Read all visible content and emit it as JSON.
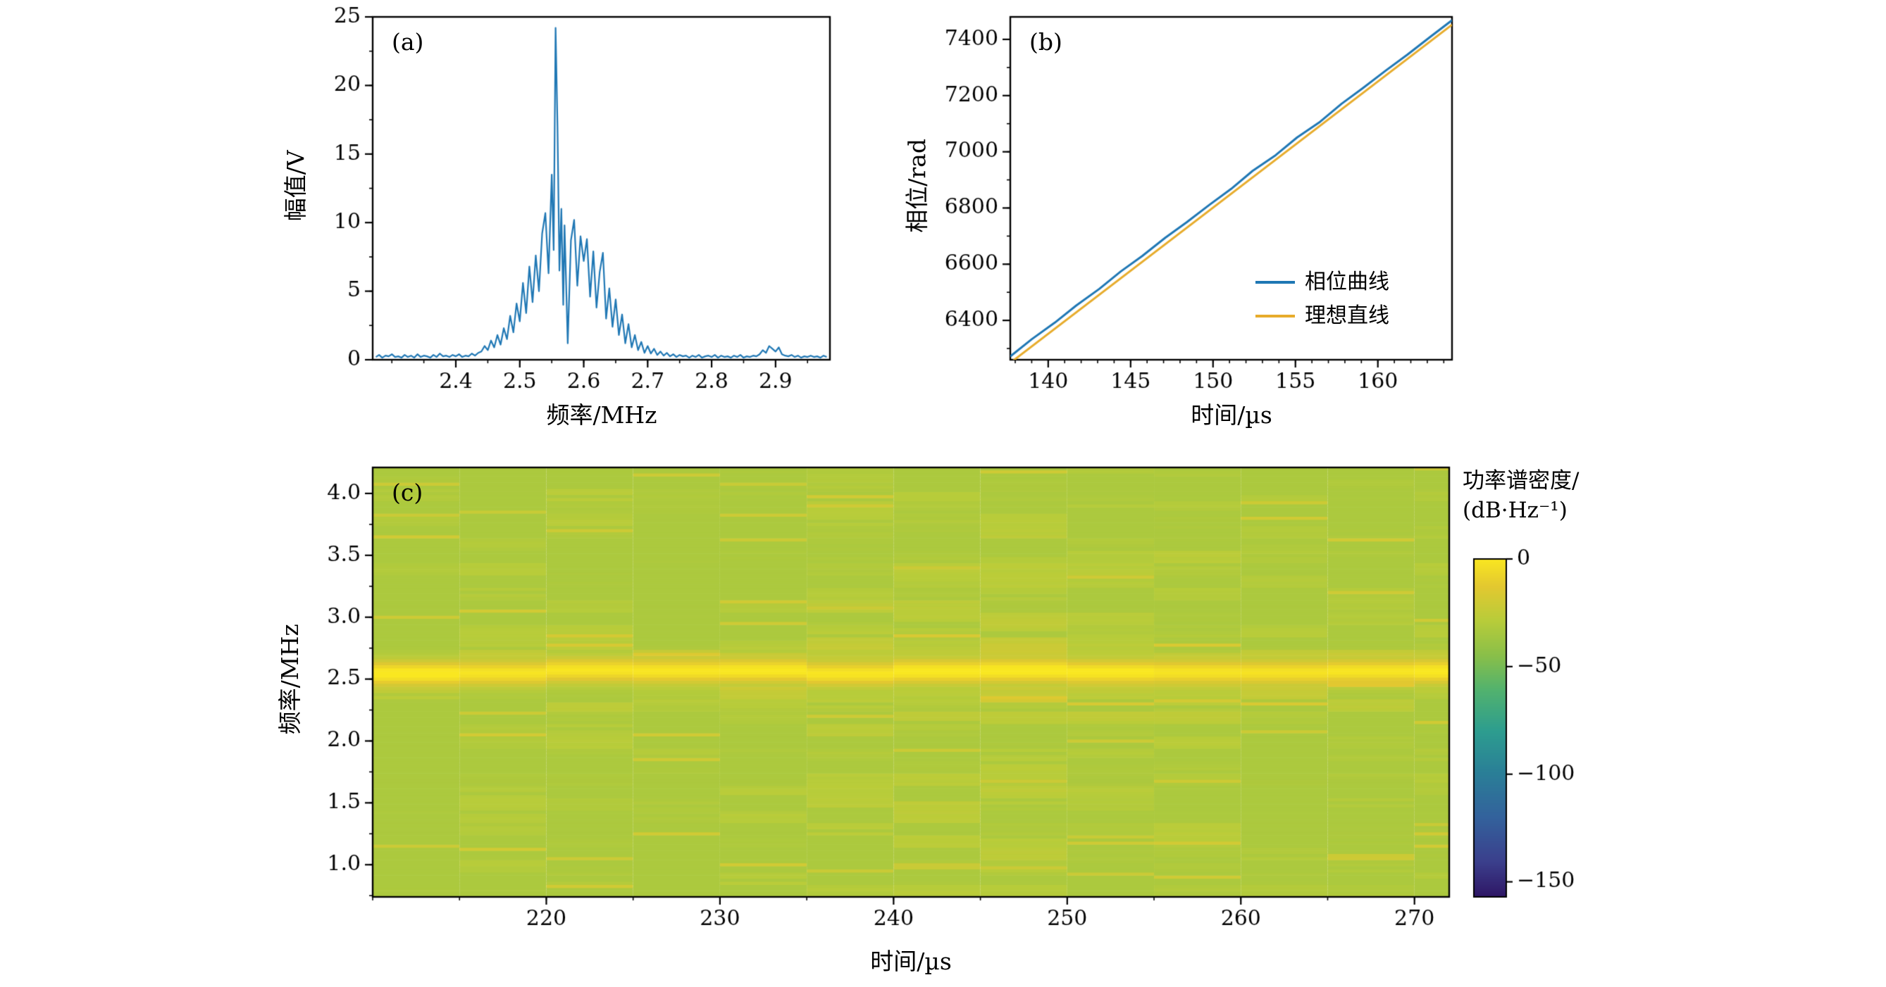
{
  "figure": {
    "background": "#ffffff",
    "panels": {
      "a": "(a)",
      "b": "(b)",
      "c": "(c)"
    }
  },
  "chart_data": [
    {
      "id": "a",
      "type": "line",
      "xlabel": "频率/MHz",
      "ylabel": "幅值/V",
      "xlim": [
        2.27,
        2.985
      ],
      "ylim": [
        0,
        25
      ],
      "xticks": [
        2.4,
        2.5,
        2.6,
        2.7,
        2.8,
        2.9
      ],
      "xtick_labels": [
        "2.4",
        "2.5",
        "2.6",
        "2.7",
        "2.8",
        "2.9"
      ],
      "yticks": [
        0,
        5,
        10,
        15,
        20,
        25
      ],
      "ytick_labels": [
        "0",
        "5",
        "10",
        "15",
        "20",
        "25"
      ],
      "x_minor_step": 0.05,
      "y_minor_step": 2.5,
      "line_color": "#1f77b4",
      "points": [
        [
          2.275,
          0.2
        ],
        [
          2.28,
          0.35
        ],
        [
          2.285,
          0.15
        ],
        [
          2.29,
          0.3
        ],
        [
          2.295,
          0.25
        ],
        [
          2.3,
          0.4
        ],
        [
          2.305,
          0.2
        ],
        [
          2.31,
          0.25
        ],
        [
          2.315,
          0.15
        ],
        [
          2.32,
          0.35
        ],
        [
          2.325,
          0.2
        ],
        [
          2.33,
          0.3
        ],
        [
          2.335,
          0.15
        ],
        [
          2.34,
          0.4
        ],
        [
          2.345,
          0.2
        ],
        [
          2.35,
          0.3
        ],
        [
          2.355,
          0.25
        ],
        [
          2.36,
          0.15
        ],
        [
          2.365,
          0.35
        ],
        [
          2.37,
          0.2
        ],
        [
          2.375,
          0.45
        ],
        [
          2.38,
          0.25
        ],
        [
          2.385,
          0.3
        ],
        [
          2.39,
          0.2
        ],
        [
          2.395,
          0.35
        ],
        [
          2.4,
          0.25
        ],
        [
          2.405,
          0.4
        ],
        [
          2.41,
          0.2
        ],
        [
          2.415,
          0.3
        ],
        [
          2.42,
          0.25
        ],
        [
          2.425,
          0.45
        ],
        [
          2.43,
          0.3
        ],
        [
          2.435,
          0.5
        ],
        [
          2.44,
          0.6
        ],
        [
          2.445,
          1.0
        ],
        [
          2.45,
          0.7
        ],
        [
          2.455,
          1.4
        ],
        [
          2.46,
          0.9
        ],
        [
          2.465,
          1.8
        ],
        [
          2.47,
          1.1
        ],
        [
          2.475,
          2.3
        ],
        [
          2.48,
          1.5
        ],
        [
          2.485,
          3.2
        ],
        [
          2.49,
          2.0
        ],
        [
          2.495,
          4.1
        ],
        [
          2.5,
          2.8
        ],
        [
          2.505,
          5.6
        ],
        [
          2.51,
          3.4
        ],
        [
          2.515,
          6.8
        ],
        [
          2.52,
          4.2
        ],
        [
          2.525,
          7.6
        ],
        [
          2.53,
          5.0
        ],
        [
          2.535,
          9.2
        ],
        [
          2.54,
          10.7
        ],
        [
          2.545,
          6.3
        ],
        [
          2.55,
          13.5
        ],
        [
          2.553,
          8.0
        ],
        [
          2.556,
          24.2
        ],
        [
          2.559,
          17.0
        ],
        [
          2.562,
          6.5
        ],
        [
          2.565,
          11.0
        ],
        [
          2.568,
          4.0
        ],
        [
          2.57,
          9.8
        ],
        [
          2.575,
          1.2
        ],
        [
          2.58,
          8.7
        ],
        [
          2.585,
          10.2
        ],
        [
          2.59,
          5.4
        ],
        [
          2.595,
          9.0
        ],
        [
          2.6,
          7.2
        ],
        [
          2.605,
          8.8
        ],
        [
          2.61,
          4.6
        ],
        [
          2.615,
          7.9
        ],
        [
          2.62,
          3.8
        ],
        [
          2.625,
          6.4
        ],
        [
          2.63,
          7.8
        ],
        [
          2.635,
          3.0
        ],
        [
          2.64,
          5.2
        ],
        [
          2.645,
          2.4
        ],
        [
          2.65,
          4.4
        ],
        [
          2.655,
          1.8
        ],
        [
          2.66,
          3.3
        ],
        [
          2.665,
          1.2
        ],
        [
          2.67,
          2.6
        ],
        [
          2.675,
          0.9
        ],
        [
          2.68,
          1.8
        ],
        [
          2.685,
          0.7
        ],
        [
          2.69,
          1.3
        ],
        [
          2.695,
          0.5
        ],
        [
          2.7,
          1.0
        ],
        [
          2.705,
          0.45
        ],
        [
          2.71,
          0.8
        ],
        [
          2.715,
          0.35
        ],
        [
          2.72,
          0.6
        ],
        [
          2.725,
          0.3
        ],
        [
          2.73,
          0.5
        ],
        [
          2.735,
          0.25
        ],
        [
          2.74,
          0.4
        ],
        [
          2.745,
          0.2
        ],
        [
          2.75,
          0.35
        ],
        [
          2.755,
          0.25
        ],
        [
          2.76,
          0.3
        ],
        [
          2.765,
          0.15
        ],
        [
          2.77,
          0.3
        ],
        [
          2.775,
          0.2
        ],
        [
          2.78,
          0.35
        ],
        [
          2.785,
          0.15
        ],
        [
          2.79,
          0.25
        ],
        [
          2.795,
          0.3
        ],
        [
          2.8,
          0.2
        ],
        [
          2.805,
          0.35
        ],
        [
          2.81,
          0.15
        ],
        [
          2.815,
          0.3
        ],
        [
          2.82,
          0.2
        ],
        [
          2.825,
          0.25
        ],
        [
          2.83,
          0.15
        ],
        [
          2.835,
          0.3
        ],
        [
          2.84,
          0.2
        ],
        [
          2.845,
          0.35
        ],
        [
          2.85,
          0.15
        ],
        [
          2.855,
          0.25
        ],
        [
          2.86,
          0.2
        ],
        [
          2.865,
          0.3
        ],
        [
          2.87,
          0.25
        ],
        [
          2.875,
          0.4
        ],
        [
          2.88,
          0.7
        ],
        [
          2.885,
          0.5
        ],
        [
          2.89,
          1.0
        ],
        [
          2.895,
          0.8
        ],
        [
          2.9,
          0.6
        ],
        [
          2.905,
          0.9
        ],
        [
          2.91,
          0.4
        ],
        [
          2.915,
          0.3
        ],
        [
          2.92,
          0.25
        ],
        [
          2.925,
          0.35
        ],
        [
          2.93,
          0.2
        ],
        [
          2.935,
          0.3
        ],
        [
          2.94,
          0.15
        ],
        [
          2.945,
          0.25
        ],
        [
          2.95,
          0.2
        ],
        [
          2.955,
          0.3
        ],
        [
          2.96,
          0.2
        ],
        [
          2.965,
          0.25
        ],
        [
          2.97,
          0.15
        ],
        [
          2.975,
          0.3
        ],
        [
          2.98,
          0.2
        ]
      ]
    },
    {
      "id": "b",
      "type": "line",
      "xlabel": "时间/µs",
      "ylabel": "相位/rad",
      "xlim": [
        137.7,
        164.5
      ],
      "ylim": [
        6260,
        7480
      ],
      "xticks": [
        140,
        145,
        150,
        155,
        160
      ],
      "xtick_labels": [
        "140",
        "145",
        "150",
        "155",
        "160"
      ],
      "yticks": [
        6400,
        6600,
        6800,
        7000,
        7200,
        7400
      ],
      "ytick_labels": [
        "6400",
        "6600",
        "6800",
        "7000",
        "7200",
        "7400"
      ],
      "x_minor_step": 1,
      "y_minor_step": 100,
      "legend_position": "lower right",
      "series": [
        {
          "name": "相位曲线",
          "color": "#1f77b4",
          "points": [
            [
              137.7,
              6272
            ],
            [
              139.0,
              6333
            ],
            [
              140.4,
              6392
            ],
            [
              141.7,
              6453
            ],
            [
              143.1,
              6512
            ],
            [
              144.4,
              6574
            ],
            [
              145.7,
              6629
            ],
            [
              147.1,
              6694
            ],
            [
              148.4,
              6749
            ],
            [
              149.8,
              6812
            ],
            [
              151.1,
              6868
            ],
            [
              152.4,
              6932
            ],
            [
              153.8,
              6988
            ],
            [
              155.1,
              7051
            ],
            [
              156.5,
              7107
            ],
            [
              157.8,
              7171
            ],
            [
              159.1,
              7227
            ],
            [
              160.5,
              7290
            ],
            [
              161.8,
              7346
            ],
            [
              163.2,
              7410
            ],
            [
              164.5,
              7468
            ]
          ]
        },
        {
          "name": "理想直线",
          "color": "#e7ac2c",
          "points": [
            [
              137.7,
              6249
            ],
            [
              164.5,
              7452
            ]
          ]
        }
      ]
    },
    {
      "id": "c",
      "type": "heatmap",
      "xlabel": "时间/µs",
      "ylabel": "频率/MHz",
      "xlim": [
        210,
        272
      ],
      "ylim": [
        0.74,
        4.21
      ],
      "xticks": [
        220,
        230,
        240,
        250,
        260,
        270
      ],
      "xtick_labels": [
        "220",
        "230",
        "240",
        "250",
        "260",
        "270"
      ],
      "yticks": [
        1.0,
        1.5,
        2.0,
        2.5,
        3.0,
        3.5,
        4.0
      ],
      "ytick_labels": [
        "1.0",
        "1.5",
        "2.0",
        "2.5",
        "3.0",
        "3.5",
        "4.0"
      ],
      "x_minor_step": 5,
      "y_minor_step": 0.25,
      "colorbar": {
        "label_line1": "功率谱密度/",
        "label_line2": "(dB·Hz⁻¹)",
        "ticks": [
          0,
          -50,
          -100,
          -150
        ],
        "tick_labels": [
          "0",
          "−50",
          "−100",
          "−150"
        ],
        "range": [
          0,
          -157
        ]
      },
      "model": {
        "seed": 7,
        "background_db": -33,
        "column_edges": [
          210,
          215,
          220,
          225,
          230,
          235,
          240,
          245,
          250,
          255,
          260,
          265,
          270,
          272
        ],
        "row_step_mhz": 0.025,
        "patch_height_mhz": 0.1,
        "patch_jitter_db": 4.5,
        "column_jitter_db": 2.5,
        "cell_jitter_db": 1.2,
        "streaks_per_column": 14,
        "streak_depth_db": [
          14,
          42
        ],
        "warm_rows_per_column": 6,
        "warm_db": -21,
        "global_streaks": [
          {
            "f": 0.87,
            "db": -52
          }
        ],
        "band": {
          "center_mhz": 2.56,
          "sigma_mhz": 0.07,
          "peak_db": 0,
          "halo_db": 9,
          "halo_sigma_mhz": 0.18
        }
      },
      "colormap_stops": [
        [
          0.0,
          "#2c0f5e"
        ],
        [
          0.12,
          "#3b3f8c"
        ],
        [
          0.25,
          "#33629c"
        ],
        [
          0.38,
          "#2a7f97"
        ],
        [
          0.5,
          "#2d9d8f"
        ],
        [
          0.62,
          "#52b26e"
        ],
        [
          0.72,
          "#8abf49"
        ],
        [
          0.82,
          "#b8cc3a"
        ],
        [
          0.92,
          "#e3c830"
        ],
        [
          1.0,
          "#f9e721"
        ]
      ]
    }
  ]
}
